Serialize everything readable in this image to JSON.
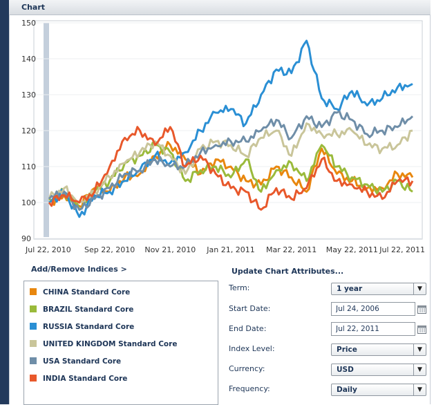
{
  "panel": {
    "title": "Chart"
  },
  "chart_data": {
    "type": "line",
    "ylim": [
      90,
      150
    ],
    "yticks": [
      90,
      100,
      110,
      120,
      130,
      140,
      150
    ],
    "xticks": [
      "Jul 22, 2010",
      "Sep 22, 2010",
      "Nov 21, 2010",
      "Jan 21, 2011",
      "Mar 22, 2011",
      "May 22, 2011",
      "Jul 22, 2011"
    ],
    "x": [
      0,
      0.5,
      1,
      1.5,
      2,
      2.5,
      3,
      3.5,
      4,
      4.5,
      5,
      5.5,
      6,
      6.5,
      7,
      7.5,
      8,
      8.5,
      9,
      9.5,
      10,
      10.5,
      11,
      11.5,
      12
    ],
    "series": [
      {
        "name": "CHINA Standard Core",
        "color": "#e8870e",
        "values": [
          100,
          102,
          99,
          104,
          103,
          107,
          108,
          113,
          116,
          112,
          108,
          112,
          110,
          106,
          105,
          110,
          107,
          103,
          115,
          108,
          106,
          104,
          104,
          108,
          107
        ]
      },
      {
        "name": "BRAZIL Standard Core",
        "color": "#9aba3b",
        "values": [
          101,
          103,
          98,
          103,
          106,
          111,
          113,
          116,
          114,
          106,
          109,
          110,
          107,
          112,
          103,
          109,
          111,
          106,
          116,
          110,
          107,
          105,
          103,
          106,
          103
        ]
      },
      {
        "name": "RUSSIA Standard Core",
        "color": "#2a8fd4",
        "values": [
          100,
          103,
          96,
          102,
          103,
          106,
          109,
          113,
          111,
          114,
          120,
          125,
          126,
          122,
          130,
          137,
          136,
          145,
          129,
          126,
          131,
          127,
          129,
          132,
          133
        ]
      },
      {
        "name": "UNITED KINGDOM Standard Core",
        "color": "#c9c59a",
        "values": [
          101,
          104,
          100,
          103,
          107,
          111,
          114,
          117,
          113,
          108,
          115,
          117,
          116,
          113,
          118,
          120,
          113,
          122,
          119,
          119,
          120,
          116,
          115,
          116,
          120
        ]
      },
      {
        "name": "USA Standard Core",
        "color": "#6f8ea8",
        "values": [
          101,
          103,
          98,
          101,
          104,
          108,
          109,
          112,
          110,
          110,
          114,
          116,
          117,
          117,
          120,
          123,
          118,
          124,
          121,
          125,
          123,
          119,
          120,
          121,
          124
        ]
      },
      {
        "name": "INDIA Standard Core",
        "color": "#e8582b",
        "values": [
          100,
          102,
          100,
          103,
          110,
          118,
          120,
          116,
          121,
          110,
          113,
          108,
          104,
          103,
          98,
          104,
          101,
          104,
          112,
          106,
          105,
          103,
          101,
          106,
          106
        ]
      }
    ]
  },
  "indices": {
    "link": "Add/Remove Indices >",
    "items": [
      {
        "label": "CHINA Standard Core",
        "color": "#e8870e"
      },
      {
        "label": "BRAZIL Standard Core",
        "color": "#9aba3b"
      },
      {
        "label": "RUSSIA Standard Core",
        "color": "#2a8fd4"
      },
      {
        "label": "UNITED KINGDOM Standard Core",
        "color": "#c9c59a"
      },
      {
        "label": "USA Standard Core",
        "color": "#6f8ea8"
      },
      {
        "label": "INDIA Standard Core",
        "color": "#e8582b"
      }
    ]
  },
  "attributes": {
    "title": "Update Chart Attributes...",
    "term": {
      "label": "Term:",
      "value": "1 year"
    },
    "start_date": {
      "label": "Start Date:",
      "value": "Jul 24, 2006"
    },
    "end_date": {
      "label": "End Date:",
      "value": "Jul 22, 2011"
    },
    "index_level": {
      "label": "Index Level:",
      "value": "Price"
    },
    "currency": {
      "label": "Currency:",
      "value": "USD"
    },
    "frequency": {
      "label": "Frequency:",
      "value": "Daily"
    }
  }
}
